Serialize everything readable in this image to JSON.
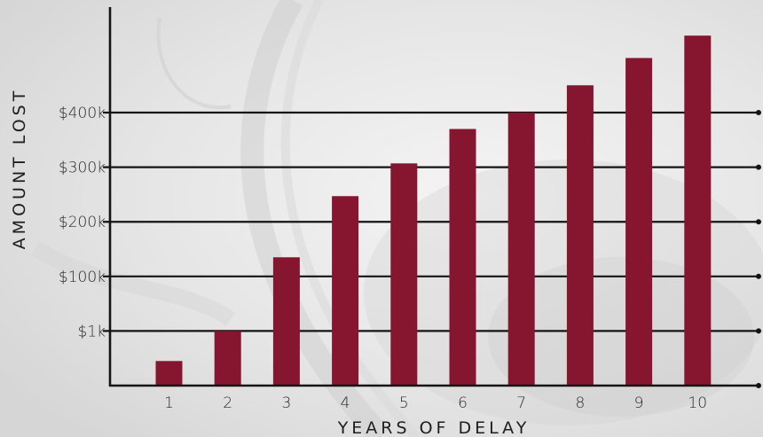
{
  "colors": {
    "bar": "#861530",
    "axis": "#141414",
    "background": "#e9e9e9"
  },
  "chart_data": {
    "type": "bar",
    "title": "",
    "xlabel": "YEARS OF DELAY",
    "ylabel": "AMOUNT LOST",
    "categories": [
      "1",
      "2",
      "3",
      "4",
      "5",
      "6",
      "7",
      "8",
      "9",
      "10"
    ],
    "y_tick_labels": [
      "$1k",
      "$100k",
      "$200k",
      "$300k",
      "$400k"
    ],
    "y_tick_levels": [
      1,
      2,
      3,
      4,
      5
    ],
    "values": [
      0.45,
      1.0,
      2.35,
      3.47,
      4.07,
      4.7,
      5.0,
      5.5,
      6.0,
      6.41
    ],
    "ylim": [
      0,
      6.9
    ],
    "legend": "none",
    "grid": true
  }
}
